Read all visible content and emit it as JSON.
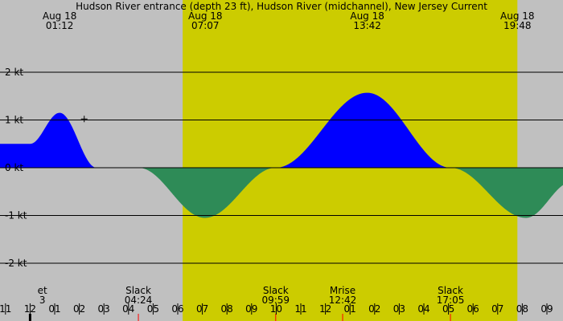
{
  "chart_data": {
    "type": "area",
    "title": "Hudson River entrance (depth 23 ft), Hudson River (midchannel), New Jersey Current",
    "units": "kt",
    "ylim": [
      -3.2,
      3.2
    ],
    "y_ticks": [
      {
        "v": 2,
        "label": "2 kt"
      },
      {
        "v": 1,
        "label": "1 kt"
      },
      {
        "v": 0,
        "label": "0 kt"
      },
      {
        "v": -1,
        "label": "-1 kt"
      },
      {
        "v": -2,
        "label": "-2 kt"
      }
    ],
    "x_domain_hours": [
      10.9,
      33.9
    ],
    "hour_ticks": [
      "11",
      "12",
      "01",
      "02",
      "03",
      "04",
      "05",
      "06",
      "07",
      "08",
      "09",
      "10",
      "11",
      "12",
      "01",
      "02",
      "03",
      "04",
      "05",
      "06",
      "07",
      "08",
      "09"
    ],
    "daylight": {
      "start_hour": 30.2,
      "end_hour": 43.8
    },
    "top_labels": [
      {
        "date": "Aug 18",
        "time": "01:12",
        "hour": 25.2
      },
      {
        "date": "Aug 18",
        "time": "07:07",
        "hour": 31.12
      },
      {
        "date": "Aug 18",
        "time": "13:42",
        "hour": 37.7
      },
      {
        "date": "Aug 18",
        "time": "19:48",
        "hour": 43.8
      }
    ],
    "events": [
      {
        "name": "et",
        "time": "3",
        "hour": 24.5,
        "marker": false
      },
      {
        "name": "Slack",
        "time": "04:24",
        "hour": 28.4,
        "marker": true
      },
      {
        "name": "Slack",
        "time": "09:59",
        "hour": 33.98,
        "marker": true
      },
      {
        "name": "Mrise",
        "time": "12:42",
        "hour": 36.7,
        "marker": true
      },
      {
        "name": "Slack",
        "time": "17:05",
        "hour": 41.08,
        "marker": true
      }
    ],
    "series": [
      {
        "flood_color": "#0000ff",
        "ebb_color": "#2e8b57",
        "points": [
          {
            "x": 24.0,
            "y": 0.5
          },
          {
            "x": 25.2,
            "y": 1.15
          },
          {
            "x": 26.7,
            "y": 0.0
          },
          {
            "x": 28.4,
            "y": 0.0
          },
          {
            "x": 31.1,
            "y": -1.05
          },
          {
            "x": 33.98,
            "y": 0.0
          },
          {
            "x": 37.7,
            "y": 1.57
          },
          {
            "x": 41.08,
            "y": 0.0
          },
          {
            "x": 44.15,
            "y": -1.05
          },
          {
            "x": 46.0,
            "y": -0.3
          }
        ]
      }
    ],
    "colors": {
      "night": "#c0c0c0",
      "day": "#cccc00",
      "grid": "#000000"
    }
  }
}
